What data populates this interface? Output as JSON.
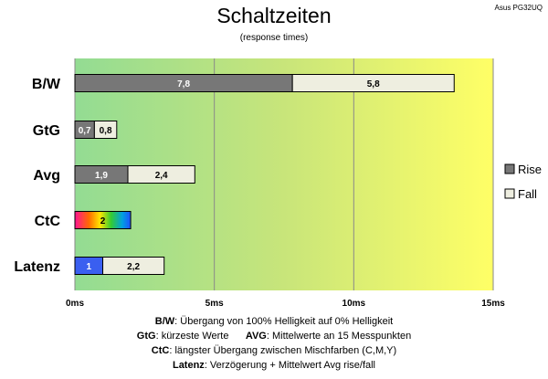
{
  "chart_data": {
    "type": "bar",
    "stacked": true,
    "orientation": "horizontal",
    "title": "Schaltzeiten",
    "subtitle": "(response times)",
    "model": "Asus PG32UQ",
    "categories": [
      "B/W",
      "GtG",
      "Avg",
      "CtC",
      "Latenz"
    ],
    "series": [
      {
        "name": "Rise",
        "values": [
          7.8,
          0.7,
          1.9,
          2,
          1
        ],
        "labels": [
          "7,8",
          "0,7",
          "1,9",
          "2",
          "1"
        ]
      },
      {
        "name": "Fall",
        "values": [
          5.8,
          0.8,
          2.4,
          0,
          2.2
        ],
        "labels": [
          "5,8",
          "0,8",
          "2,4",
          "",
          "2,2"
        ]
      }
    ],
    "xticks": [
      0,
      5,
      10,
      15
    ],
    "xtick_labels": [
      "0ms",
      "5ms",
      "10ms",
      "15ms"
    ],
    "xlim": [
      0,
      15
    ],
    "legend_position": "right",
    "colors": {
      "rise": "#777777",
      "fall": "#eeeee0",
      "latenz_rise": "#3a5ff0",
      "background_gradient": [
        "#93dc93",
        "#c8e57a",
        "#ffff66"
      ]
    }
  },
  "notes": [
    {
      "b1": "B/W",
      "t1": ":  Übergang von 100% Helligkeit auf 0% Helligkeit"
    },
    {
      "b1": "GtG",
      "t1": ": kürzeste  Werte",
      "b2": "AVG",
      "t2": ": Mittelwerte  an 15 Messpunkten"
    },
    {
      "b1": "CtC",
      "t1": ": längster Übergang  zwischen Mischfarben (C,M,Y)"
    },
    {
      "b1": "Latenz",
      "t1": ": Verzögerung  + Mittelwert Avg rise/fall"
    }
  ]
}
